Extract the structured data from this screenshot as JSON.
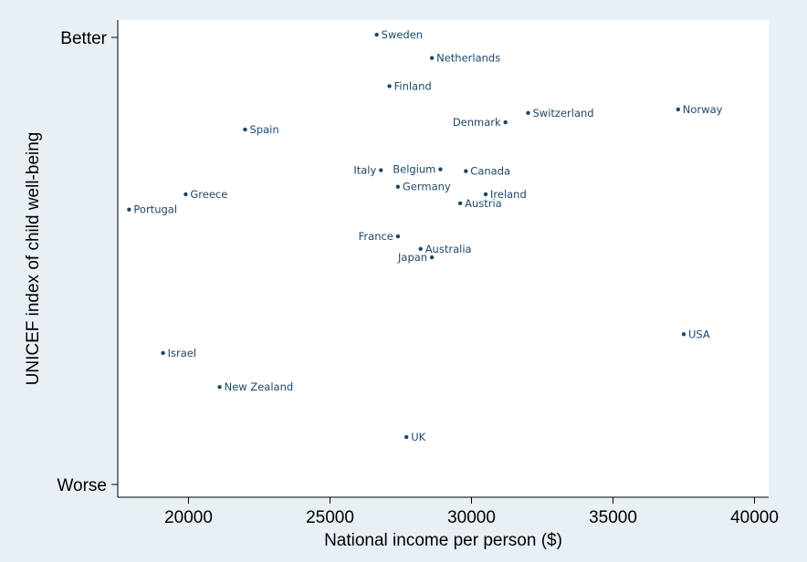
{
  "chart_data": {
    "type": "scatter",
    "xlabel": "National income per person ($)",
    "ylabel": "UNICEF index of child well-being",
    "xlim": [
      17500,
      40500
    ],
    "ylim": [
      0,
      100
    ],
    "x_ticks": [
      20000,
      25000,
      30000,
      35000,
      40000
    ],
    "y_ticks": [
      {
        "value": 100,
        "label": "Better"
      },
      {
        "value": 0,
        "label": "Worse"
      }
    ],
    "grid": false,
    "legend": "none",
    "colors": {
      "plot_background": "#ffffff",
      "outer_background": "#e9f0f5",
      "marker": "#1a476f",
      "label": "#1a476f",
      "axis": "#000000"
    },
    "points": [
      {
        "name": "Sweden",
        "x": 26650,
        "y": 100.6,
        "label_pos": "right"
      },
      {
        "name": "Netherlands",
        "x": 28600,
        "y": 95.4,
        "label_pos": "right"
      },
      {
        "name": "Finland",
        "x": 27100,
        "y": 89.1,
        "label_pos": "right"
      },
      {
        "name": "Switzerland",
        "x": 32000,
        "y": 83.1,
        "label_pos": "right"
      },
      {
        "name": "Norway",
        "x": 37300,
        "y": 83.9,
        "label_pos": "right"
      },
      {
        "name": "Denmark",
        "x": 31200,
        "y": 81.0,
        "label_pos": "left"
      },
      {
        "name": "Spain",
        "x": 22000,
        "y": 79.4,
        "label_pos": "right"
      },
      {
        "name": "Italy",
        "x": 26800,
        "y": 70.3,
        "label_pos": "left"
      },
      {
        "name": "Belgium",
        "x": 28900,
        "y": 70.5,
        "label_pos": "left"
      },
      {
        "name": "Canada",
        "x": 29800,
        "y": 70.1,
        "label_pos": "right"
      },
      {
        "name": "Germany",
        "x": 27400,
        "y": 66.6,
        "label_pos": "right"
      },
      {
        "name": "Greece",
        "x": 19900,
        "y": 64.9,
        "label_pos": "right"
      },
      {
        "name": "Ireland",
        "x": 30500,
        "y": 64.9,
        "label_pos": "right"
      },
      {
        "name": "Austria",
        "x": 29600,
        "y": 62.9,
        "label_pos": "right"
      },
      {
        "name": "Portugal",
        "x": 17900,
        "y": 61.5,
        "label_pos": "right"
      },
      {
        "name": "France",
        "x": 27400,
        "y": 55.5,
        "label_pos": "left"
      },
      {
        "name": "Australia",
        "x": 28200,
        "y": 52.7,
        "label_pos": "right"
      },
      {
        "name": "Japan",
        "x": 28600,
        "y": 50.8,
        "label_pos": "left"
      },
      {
        "name": "USA",
        "x": 37500,
        "y": 33.6,
        "label_pos": "right"
      },
      {
        "name": "Israel",
        "x": 19100,
        "y": 29.4,
        "label_pos": "right"
      },
      {
        "name": "New Zealand",
        "x": 21100,
        "y": 21.8,
        "label_pos": "right"
      },
      {
        "name": "UK",
        "x": 27700,
        "y": 10.6,
        "label_pos": "right"
      }
    ]
  }
}
